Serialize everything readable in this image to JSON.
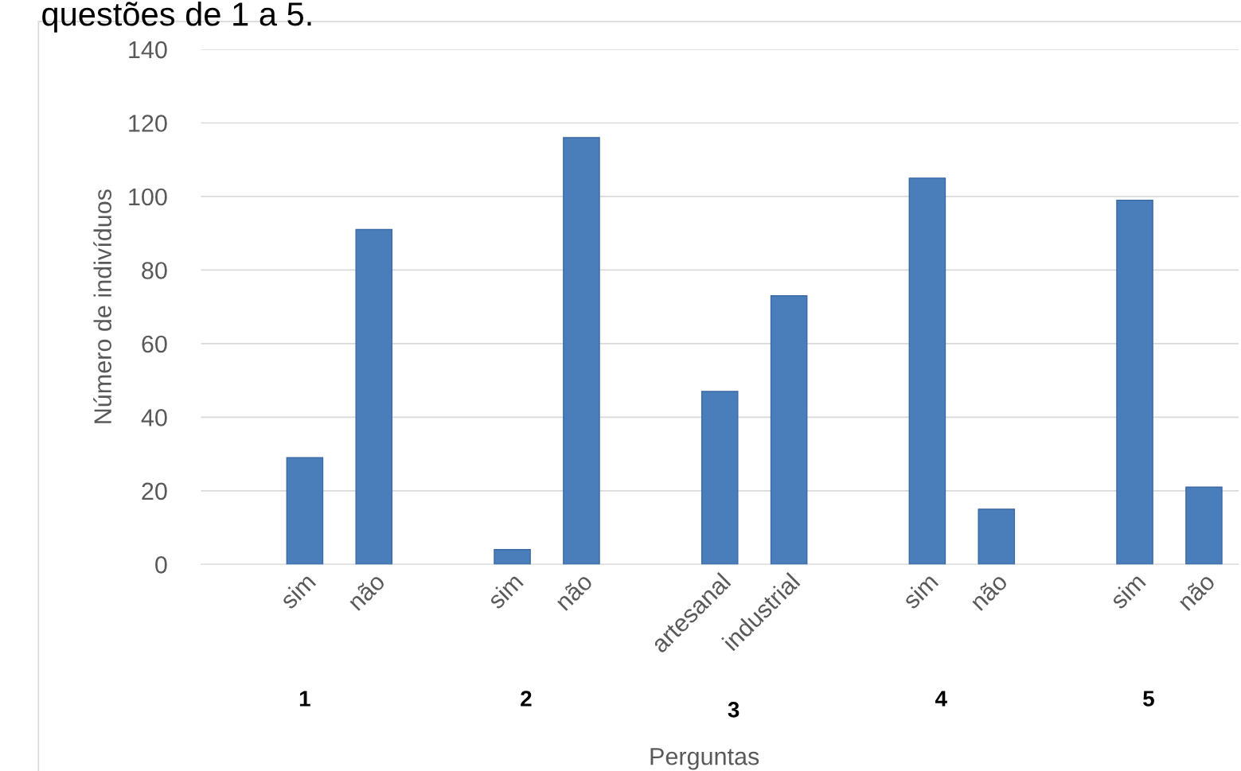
{
  "chart_data": {
    "type": "bar",
    "title": "questões de 1 a 5.",
    "xlabel": "Perguntas",
    "ylabel": "Número de indivíduos",
    "categories": [
      null,
      "sim",
      "não",
      null,
      "sim",
      "não",
      null,
      "artesanal",
      "industrial",
      null,
      "sim",
      "não",
      null,
      "sim",
      "não"
    ],
    "values": [
      null,
      29,
      91,
      null,
      4,
      116,
      null,
      47,
      73,
      null,
      105,
      15,
      null,
      99,
      21
    ],
    "color": "#4a7ebb",
    "ylim": [
      0,
      140
    ],
    "yticks": [
      0,
      20,
      40,
      60,
      80,
      100,
      120,
      140
    ],
    "grid": "y",
    "annotations": [
      "1",
      "2",
      "3",
      "4",
      "5"
    ]
  }
}
